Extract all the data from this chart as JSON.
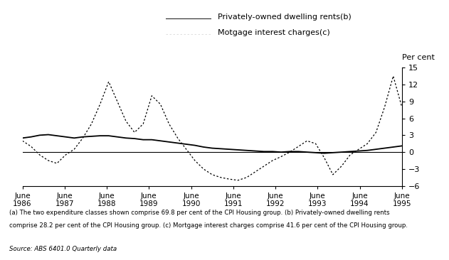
{
  "ylabel": "Per cent",
  "ylim": [
    -6,
    15
  ],
  "yticks": [
    -6,
    -3,
    0,
    3,
    6,
    9,
    12,
    15
  ],
  "x_labels": [
    "June\n1986",
    "June\n1987",
    "June\n1988",
    "June\n1989",
    "June\n1990",
    "June\n1991",
    "June\n1992",
    "June\n1993",
    "June\n1994",
    "June\n1995"
  ],
  "legend_line1": "Privately-owned dwelling rents(b)",
  "legend_line2": "Motgage interest charges(c)",
  "footnote1": "(a) The two expenditure classes shown comprise 69.8 per cent of the CPI Housing group. (b) Privately-owned dwelling rents",
  "footnote2": "comprise 28.2 per cent of the CPI Housing group. (c) Mortgage interest charges comprise 41.6 per cent of the CPI Housing group.",
  "source": "Source: ABS 6401.0 Quarterly data",
  "rents": [
    2.5,
    2.7,
    3.0,
    3.1,
    2.9,
    2.7,
    2.5,
    2.7,
    2.8,
    2.9,
    2.9,
    2.7,
    2.5,
    2.4,
    2.2,
    2.2,
    2.0,
    1.8,
    1.6,
    1.4,
    1.2,
    0.9,
    0.7,
    0.6,
    0.5,
    0.4,
    0.3,
    0.2,
    0.1,
    0.1,
    0.0,
    0.1,
    0.1,
    0.0,
    -0.1,
    -0.2,
    -0.1,
    0.0,
    0.1,
    0.2,
    0.3,
    0.5,
    0.7,
    0.9,
    1.1
  ],
  "mortgage": [
    2.0,
    1.0,
    -0.5,
    -1.5,
    -2.0,
    -0.5,
    0.5,
    2.5,
    5.0,
    8.5,
    12.5,
    9.0,
    5.5,
    3.5,
    5.0,
    10.0,
    8.5,
    5.0,
    2.5,
    0.5,
    -1.5,
    -3.0,
    -4.0,
    -4.5,
    -4.8,
    -5.0,
    -4.5,
    -3.5,
    -2.5,
    -1.5,
    -0.8,
    0.0,
    1.0,
    2.0,
    1.5,
    -1.0,
    -4.0,
    -2.5,
    -0.5,
    0.5,
    1.5,
    3.5,
    8.0,
    13.5,
    8.0
  ]
}
